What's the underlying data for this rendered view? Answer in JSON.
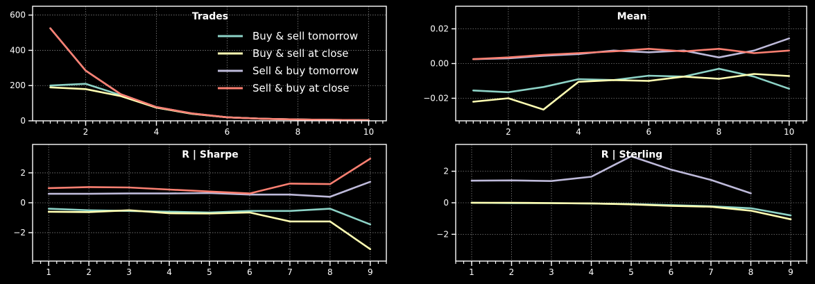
{
  "colors": {
    "background": "#000000",
    "axes": "#ffffff",
    "grid": "#7f7f7f",
    "buy_sell_tomorrow": "#8dd3c7",
    "buy_sell_close": "#ffffb3",
    "sell_buy_tomorrow": "#bebada",
    "sell_buy_close": "#fb8072"
  },
  "legend": {
    "placement": "upper-right of Trades panel",
    "entries": [
      {
        "label": "Buy & sell tomorrow",
        "color_key": "buy_sell_tomorrow"
      },
      {
        "label": "Buy & sell at close",
        "color_key": "buy_sell_close"
      },
      {
        "label": "Sell & buy tomorrow",
        "color_key": "sell_buy_tomorrow"
      },
      {
        "label": "Sell & buy at close",
        "color_key": "sell_buy_close"
      }
    ]
  },
  "chart_data": [
    {
      "id": "trades",
      "type": "line",
      "title": "Trades",
      "xlabel": "",
      "ylabel": "",
      "x": [
        1,
        2,
        3,
        4,
        5,
        6,
        7,
        8,
        9,
        10
      ],
      "xlim": [
        0.5,
        10.5
      ],
      "ylim": [
        0,
        650
      ],
      "xticks": [
        2,
        4,
        6,
        8,
        10
      ],
      "yticks": [
        0,
        200,
        400,
        600
      ],
      "ytick_labels": [
        "0",
        "200",
        "400",
        "600"
      ],
      "grid": true,
      "series": [
        {
          "name": "Buy & sell tomorrow",
          "color_key": "buy_sell_tomorrow",
          "values": [
            200,
            210,
            145,
            75,
            40,
            20,
            12,
            8,
            5,
            3
          ]
        },
        {
          "name": "Buy & sell at close",
          "color_key": "buy_sell_close",
          "values": [
            190,
            180,
            140,
            75,
            40,
            20,
            12,
            8,
            5,
            3
          ]
        },
        {
          "name": "Sell & buy tomorrow",
          "color_key": "sell_buy_tomorrow",
          "values": [
            525,
            285,
            150,
            78,
            42,
            20,
            12,
            8,
            5,
            3
          ]
        },
        {
          "name": "Sell & buy at close",
          "color_key": "sell_buy_close",
          "values": [
            525,
            285,
            150,
            78,
            42,
            20,
            12,
            8,
            5,
            3
          ]
        }
      ]
    },
    {
      "id": "mean",
      "type": "line",
      "title": "Mean",
      "xlabel": "",
      "ylabel": "",
      "x": [
        1,
        2,
        3,
        4,
        5,
        6,
        7,
        8,
        9,
        10
      ],
      "xlim": [
        0.5,
        10.5
      ],
      "ylim": [
        -0.033,
        0.033
      ],
      "xticks": [
        2,
        4,
        6,
        8,
        10
      ],
      "yticks": [
        -0.02,
        0.0,
        0.02
      ],
      "ytick_labels": [
        "−0.02",
        "0.00",
        "0.02"
      ],
      "grid": true,
      "series": [
        {
          "name": "Buy & sell tomorrow",
          "color_key": "buy_sell_tomorrow",
          "values": [
            -0.0155,
            -0.0165,
            -0.0135,
            -0.009,
            -0.0095,
            -0.007,
            -0.0075,
            -0.003,
            -0.0075,
            -0.0145
          ]
        },
        {
          "name": "Buy & sell at close",
          "color_key": "buy_sell_close",
          "values": [
            -0.022,
            -0.02,
            -0.0265,
            -0.0105,
            -0.0095,
            -0.01,
            -0.0075,
            -0.0088,
            -0.006,
            -0.0072
          ]
        },
        {
          "name": "Sell & buy tomorrow",
          "color_key": "sell_buy_tomorrow",
          "values": [
            0.0025,
            0.003,
            0.0045,
            0.0055,
            0.0075,
            0.0065,
            0.0075,
            0.0035,
            0.0075,
            0.0145
          ]
        },
        {
          "name": "Sell & buy at close",
          "color_key": "sell_buy_close",
          "values": [
            0.0025,
            0.0035,
            0.005,
            0.006,
            0.007,
            0.0085,
            0.007,
            0.0085,
            0.006,
            0.0075
          ]
        }
      ]
    },
    {
      "id": "sharpe",
      "type": "line",
      "title": "R | Sharpe",
      "xlabel": "",
      "ylabel": "",
      "x": [
        1,
        2,
        3,
        4,
        5,
        6,
        7,
        8,
        9
      ],
      "xlim": [
        0.6,
        9.4
      ],
      "ylim": [
        -3.9,
        3.9
      ],
      "xticks": [
        1,
        2,
        3,
        4,
        5,
        6,
        7,
        8,
        9
      ],
      "yticks": [
        -2,
        0,
        2
      ],
      "ytick_labels": [
        "−2",
        "0",
        "2"
      ],
      "grid": true,
      "series": [
        {
          "name": "Buy & sell tomorrow",
          "color_key": "buy_sell_tomorrow",
          "values": [
            -0.4,
            -0.5,
            -0.55,
            -0.6,
            -0.65,
            -0.55,
            -0.55,
            -0.4,
            -1.45
          ]
        },
        {
          "name": "Buy & sell at close",
          "color_key": "buy_sell_close",
          "values": [
            -0.6,
            -0.62,
            -0.5,
            -0.7,
            -0.72,
            -0.65,
            -1.25,
            -1.25,
            -3.1
          ]
        },
        {
          "name": "Sell & buy tomorrow",
          "color_key": "sell_buy_tomorrow",
          "values": [
            0.6,
            0.6,
            0.62,
            0.62,
            0.65,
            0.55,
            0.55,
            0.4,
            1.4
          ]
        },
        {
          "name": "Sell & buy at close",
          "color_key": "sell_buy_close",
          "values": [
            0.98,
            1.05,
            1.02,
            0.88,
            0.75,
            0.62,
            1.28,
            1.25,
            2.95
          ]
        }
      ]
    },
    {
      "id": "sterling",
      "type": "line",
      "title": "R | Sterling",
      "xlabel": "",
      "ylabel": "",
      "x": [
        1,
        2,
        3,
        4,
        5,
        6,
        7,
        8,
        9
      ],
      "xlim": [
        0.6,
        9.4
      ],
      "ylim": [
        -3.7,
        3.7
      ],
      "xticks": [
        1,
        2,
        3,
        4,
        5,
        6,
        7,
        8,
        9
      ],
      "yticks": [
        -2,
        0,
        2
      ],
      "ytick_labels": [
        "−2",
        "0",
        "2"
      ],
      "grid": true,
      "series": [
        {
          "name": "Buy & sell tomorrow",
          "color_key": "buy_sell_tomorrow",
          "values": [
            0,
            -0.02,
            -0.02,
            -0.05,
            -0.08,
            -0.15,
            -0.22,
            -0.35,
            -0.8
          ]
        },
        {
          "name": "Buy & sell at close",
          "color_key": "buy_sell_close",
          "values": [
            0,
            0,
            -0.02,
            -0.04,
            -0.1,
            -0.2,
            -0.25,
            -0.5,
            -1.05
          ]
        },
        {
          "name": "Sell & buy tomorrow",
          "color_key": "sell_buy_tomorrow",
          "values": [
            1.4,
            1.42,
            1.38,
            1.65,
            2.95,
            2.1,
            1.45,
            0.6,
            null
          ]
        }
      ]
    }
  ]
}
